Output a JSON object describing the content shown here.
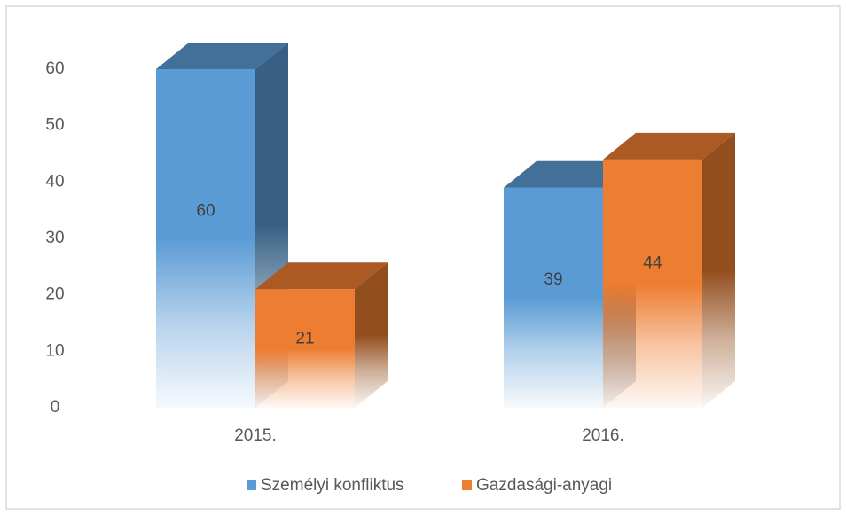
{
  "chart_data": {
    "type": "bar3d",
    "categories": [
      "2015.",
      "2016."
    ],
    "series": [
      {
        "name": "Személyi konfliktus",
        "color": "#5b9bd5",
        "values": [
          60,
          39
        ]
      },
      {
        "name": "Gazdasági-anyagi",
        "color": "#ed7d31",
        "values": [
          21,
          44
        ]
      }
    ],
    "ylim": [
      0,
      60
    ],
    "yticks": [
      0,
      10,
      20,
      30,
      40,
      50,
      60
    ],
    "grid": false,
    "legend": "bottom"
  }
}
